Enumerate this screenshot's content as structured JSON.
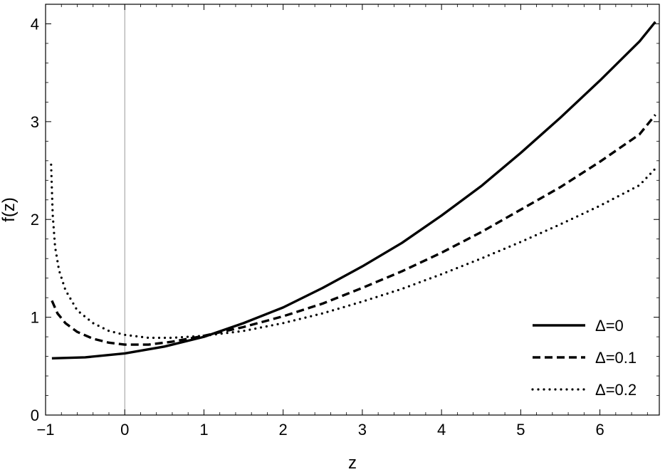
{
  "chart_data": {
    "type": "line",
    "title": "",
    "xlabel": "z",
    "ylabel": "f(z)",
    "xlim": [
      -1.0,
      6.75
    ],
    "ylim": [
      0,
      4.2
    ],
    "x_ticks": [
      -1,
      0,
      1,
      2,
      3,
      4,
      5,
      6
    ],
    "x_tick_labels": [
      "−1",
      "0",
      "1",
      "2",
      "3",
      "4",
      "5",
      "6"
    ],
    "y_ticks": [
      0,
      1,
      2,
      3,
      4
    ],
    "y_tick_labels": [
      "0",
      "1",
      "2",
      "3",
      "4"
    ],
    "grid": false,
    "frame": true,
    "legend_position": "bottom-right",
    "series": [
      {
        "name": "Δ=0",
        "style": "solid",
        "x": [
          -0.92,
          -0.5,
          0,
          0.5,
          1,
          1.5,
          2,
          2.5,
          3,
          3.5,
          4,
          4.5,
          5,
          5.5,
          6,
          6.5,
          6.7
        ],
        "y": [
          0.58,
          0.59,
          0.63,
          0.7,
          0.8,
          0.94,
          1.1,
          1.3,
          1.52,
          1.76,
          2.04,
          2.34,
          2.68,
          3.04,
          3.42,
          3.82,
          4.02
        ]
      },
      {
        "name": "Δ=0.1",
        "style": "dashed",
        "x": [
          -0.92,
          -0.85,
          -0.75,
          -0.6,
          -0.4,
          -0.2,
          0,
          0.3,
          0.6,
          1,
          1.5,
          2,
          2.5,
          3,
          3.5,
          4,
          4.5,
          5,
          5.5,
          6,
          6.5,
          6.7
        ],
        "y": [
          1.17,
          1.04,
          0.94,
          0.85,
          0.78,
          0.74,
          0.72,
          0.72,
          0.75,
          0.81,
          0.9,
          1.01,
          1.14,
          1.3,
          1.47,
          1.66,
          1.87,
          2.1,
          2.33,
          2.59,
          2.87,
          3.07
        ]
      },
      {
        "name": "Δ=0.2",
        "style": "dotted",
        "x": [
          -0.93,
          -0.91,
          -0.88,
          -0.83,
          -0.75,
          -0.6,
          -0.4,
          -0.2,
          0,
          0.3,
          0.6,
          1,
          1.5,
          2,
          2.5,
          3,
          3.5,
          4,
          4.5,
          5,
          5.5,
          6,
          6.5,
          6.7
        ],
        "y": [
          2.56,
          2.05,
          1.72,
          1.48,
          1.28,
          1.07,
          0.94,
          0.86,
          0.82,
          0.79,
          0.79,
          0.81,
          0.86,
          0.94,
          1.04,
          1.16,
          1.29,
          1.44,
          1.6,
          1.77,
          1.95,
          2.14,
          2.35,
          2.52
        ]
      }
    ]
  }
}
